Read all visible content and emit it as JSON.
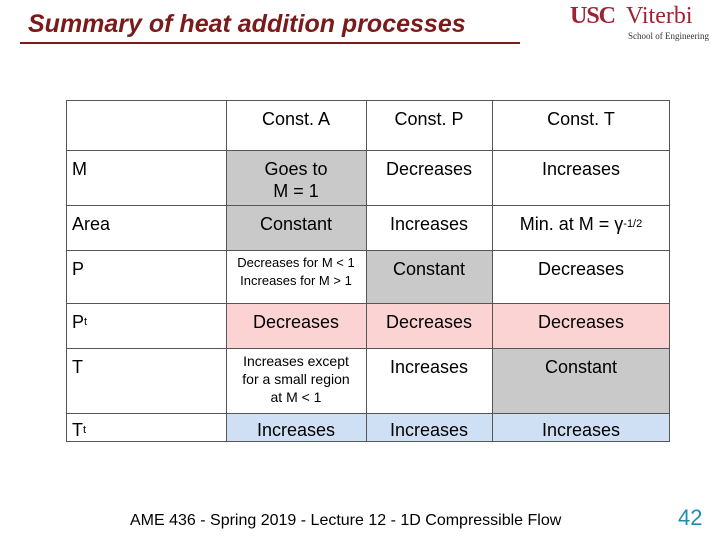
{
  "title": "Summary of heat addition processes",
  "logo": {
    "usc": "USC",
    "viterbi": "Viterbi",
    "school": "School of Engineering"
  },
  "table": {
    "headers": [
      "Const. A",
      "Const. P",
      "Const. T"
    ],
    "rows": [
      {
        "label_main": "M",
        "label_sub": "",
        "cells": [
          "Goes to\nM = 1",
          "Decreases",
          "Increases"
        ]
      },
      {
        "label_main": "Area",
        "label_sub": "",
        "cells": [
          "Constant",
          "Increases",
          "Min. at M = γ"
        ],
        "last_sup": "-1/2"
      },
      {
        "label_main": "P",
        "label_sub": "",
        "cells": [
          "Decreases for M < 1\nIncreases for M > 1",
          "Constant",
          "Decreases"
        ]
      },
      {
        "label_main": "P",
        "label_sub": "t",
        "cells": [
          "Decreases",
          "Decreases",
          "Decreases"
        ]
      },
      {
        "label_main": "T",
        "label_sub": "",
        "cells": [
          "Increases except\nfor a small region\nat M < 1",
          "Increases",
          "Constant"
        ]
      },
      {
        "label_main": "T",
        "label_sub": "t",
        "cells": [
          "Increases",
          "Increases",
          "Increases"
        ]
      }
    ]
  },
  "footer": "AME 436 - Spring 2019 - Lecture 12 - 1D Compressible Flow",
  "page_number": "42"
}
